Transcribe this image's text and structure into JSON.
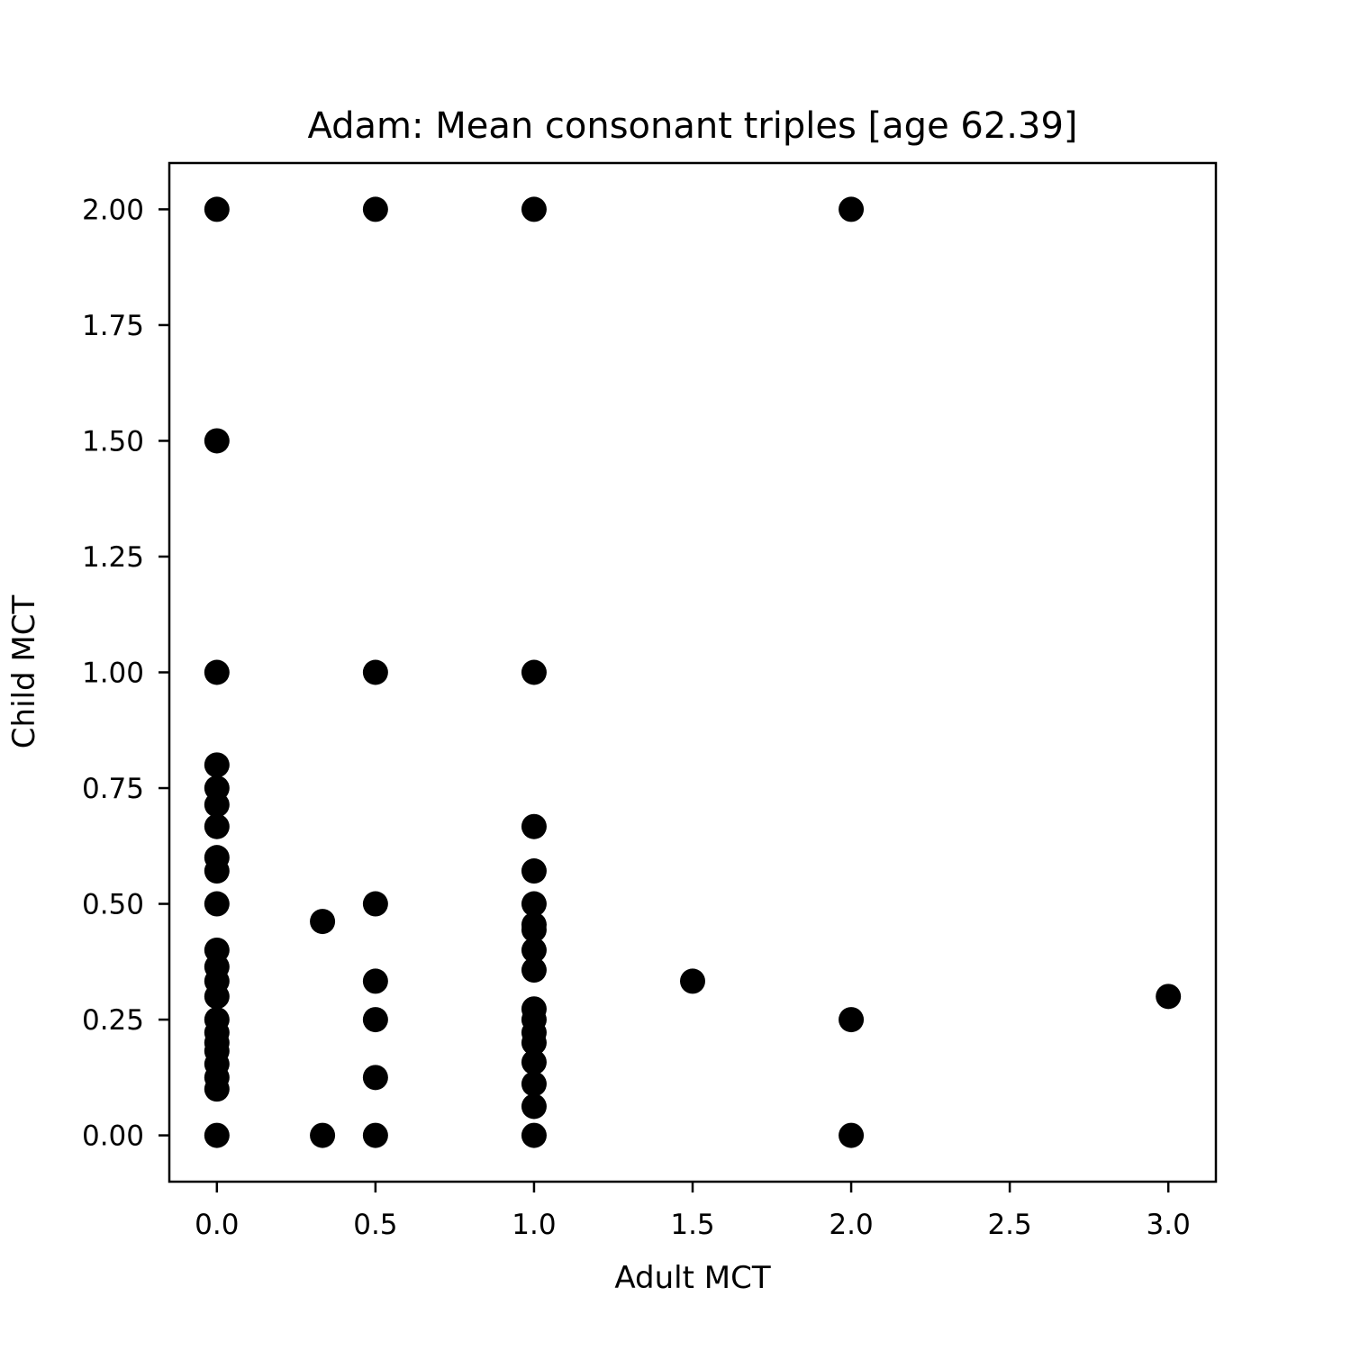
{
  "chart_data": {
    "type": "scatter",
    "title": "Adam: Mean consonant triples [age 62.39]",
    "xlabel": "Adult MCT",
    "ylabel": "Child MCT",
    "xlim": [
      -0.15,
      3.15
    ],
    "ylim": [
      -0.1,
      2.1
    ],
    "xticks": [
      0.0,
      0.5,
      1.0,
      1.5,
      2.0,
      2.5,
      3.0
    ],
    "xtick_labels": [
      "0.0",
      "0.5",
      "1.0",
      "1.5",
      "2.0",
      "2.5",
      "3.0"
    ],
    "yticks": [
      0.0,
      0.25,
      0.5,
      0.75,
      1.0,
      1.25,
      1.5,
      1.75,
      2.0
    ],
    "ytick_labels": [
      "0.00",
      "0.25",
      "0.50",
      "0.75",
      "1.00",
      "1.25",
      "1.50",
      "1.75",
      "2.00"
    ],
    "grid": false,
    "marker_color": "#000000",
    "points": [
      [
        0.0,
        2.0
      ],
      [
        0.5,
        2.0
      ],
      [
        1.0,
        2.0
      ],
      [
        2.0,
        2.0
      ],
      [
        0.0,
        1.5
      ],
      [
        0.0,
        1.0
      ],
      [
        0.5,
        1.0
      ],
      [
        1.0,
        1.0
      ],
      [
        0.0,
        0.8
      ],
      [
        0.0,
        0.75
      ],
      [
        0.0,
        0.714
      ],
      [
        0.0,
        0.667
      ],
      [
        0.0,
        0.6
      ],
      [
        0.0,
        0.571
      ],
      [
        0.0,
        0.5
      ],
      [
        0.0,
        0.4
      ],
      [
        0.0,
        0.364
      ],
      [
        0.0,
        0.333
      ],
      [
        0.0,
        0.3
      ],
      [
        0.0,
        0.25
      ],
      [
        0.0,
        0.222
      ],
      [
        0.0,
        0.2
      ],
      [
        0.0,
        0.182
      ],
      [
        0.0,
        0.154
      ],
      [
        0.0,
        0.125
      ],
      [
        0.0,
        0.1
      ],
      [
        0.0,
        0.0
      ],
      [
        0.333,
        0.462
      ],
      [
        0.333,
        0.0
      ],
      [
        0.5,
        0.5
      ],
      [
        0.5,
        0.333
      ],
      [
        0.5,
        0.25
      ],
      [
        0.5,
        0.125
      ],
      [
        0.5,
        0.0
      ],
      [
        1.0,
        0.667
      ],
      [
        1.0,
        0.571
      ],
      [
        1.0,
        0.5
      ],
      [
        1.0,
        0.455
      ],
      [
        1.0,
        0.444
      ],
      [
        1.0,
        0.4
      ],
      [
        1.0,
        0.357
      ],
      [
        1.0,
        0.273
      ],
      [
        1.0,
        0.25
      ],
      [
        1.0,
        0.222
      ],
      [
        1.0,
        0.2
      ],
      [
        1.0,
        0.158
      ],
      [
        1.0,
        0.111
      ],
      [
        1.0,
        0.0625
      ],
      [
        1.0,
        0.0
      ],
      [
        1.5,
        0.333
      ],
      [
        2.0,
        0.25
      ],
      [
        2.0,
        0.0
      ],
      [
        3.0,
        0.3
      ]
    ]
  }
}
